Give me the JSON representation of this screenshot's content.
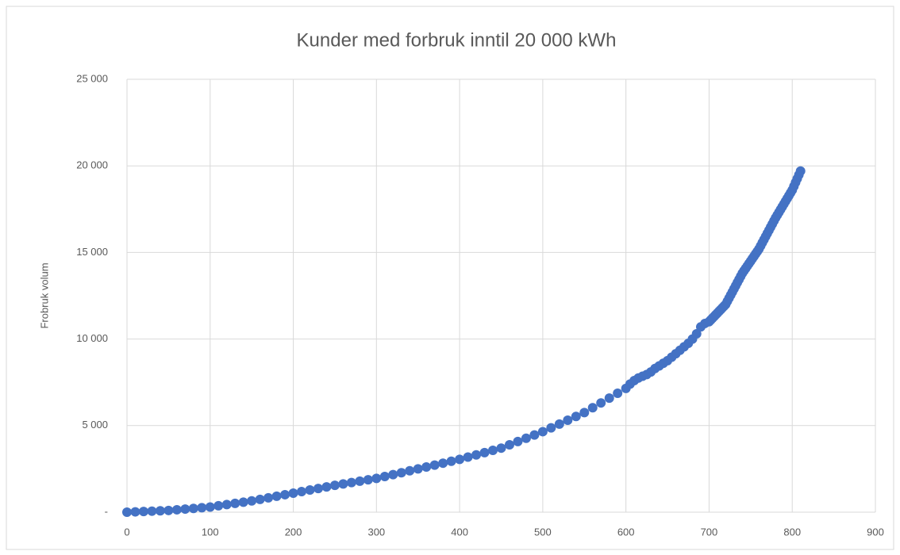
{
  "chart_data": {
    "type": "scatter",
    "title": "Kunder med forbruk inntil 20 000 kWh",
    "ylabel": "Frobruk volum",
    "color": "#4472c4",
    "grid": true,
    "xlim": [
      0,
      900
    ],
    "xticks": [
      0,
      100,
      200,
      300,
      400,
      500,
      600,
      700,
      800,
      900
    ],
    "ylim": [
      0,
      25000
    ],
    "yticks": [
      {
        "value": 0,
        "label": "-"
      },
      {
        "value": 5000,
        "label": "5 000"
      },
      {
        "value": 10000,
        "label": "10 000"
      },
      {
        "value": 15000,
        "label": "15 000"
      },
      {
        "value": 20000,
        "label": "20 000"
      },
      {
        "value": 25000,
        "label": "25 000"
      }
    ],
    "x": [
      0,
      10,
      20,
      30,
      40,
      50,
      60,
      70,
      80,
      90,
      100,
      110,
      120,
      130,
      140,
      150,
      160,
      170,
      180,
      190,
      200,
      210,
      220,
      230,
      240,
      250,
      260,
      270,
      280,
      290,
      300,
      310,
      320,
      330,
      340,
      350,
      360,
      370,
      380,
      390,
      400,
      410,
      420,
      430,
      440,
      450,
      460,
      470,
      480,
      490,
      500,
      510,
      520,
      530,
      540,
      550,
      560,
      570,
      580,
      590,
      600,
      605,
      610,
      615,
      620,
      625,
      630,
      635,
      640,
      645,
      650,
      655,
      660,
      665,
      670,
      675,
      680,
      685,
      690,
      695,
      700,
      702,
      704,
      706,
      708,
      710,
      712,
      714,
      716,
      718,
      720,
      722,
      724,
      726,
      728,
      730,
      732,
      734,
      736,
      738,
      740,
      742,
      744,
      746,
      748,
      750,
      752,
      754,
      756,
      758,
      760,
      762,
      764,
      766,
      768,
      770,
      772,
      774,
      776,
      778,
      780,
      782,
      784,
      786,
      788,
      790,
      792,
      794,
      796,
      798,
      800,
      802,
      804,
      806,
      808,
      810
    ],
    "values": [
      0,
      20,
      40,
      60,
      80,
      100,
      140,
      180,
      220,
      260,
      300,
      370,
      440,
      510,
      580,
      650,
      740,
      830,
      920,
      1010,
      1100,
      1190,
      1280,
      1370,
      1460,
      1550,
      1630,
      1710,
      1790,
      1870,
      1950,
      2060,
      2170,
      2280,
      2390,
      2500,
      2610,
      2720,
      2830,
      2940,
      3050,
      3180,
      3310,
      3440,
      3570,
      3700,
      3890,
      4080,
      4270,
      4460,
      4650,
      4870,
      5090,
      5310,
      5530,
      5750,
      6030,
      6310,
      6590,
      6870,
      7150,
      7400,
      7600,
      7750,
      7850,
      7950,
      8100,
      8300,
      8450,
      8600,
      8750,
      8950,
      9150,
      9350,
      9550,
      9750,
      10000,
      10300,
      10700,
      10900,
      11000,
      11100,
      11200,
      11300,
      11400,
      11500,
      11600,
      11700,
      11800,
      11900,
      12000,
      12180,
      12360,
      12540,
      12720,
      12900,
      13080,
      13260,
      13440,
      13620,
      13800,
      13940,
      14080,
      14220,
      14360,
      14500,
      14640,
      14780,
      14920,
      15060,
      15200,
      15380,
      15560,
      15740,
      15920,
      16100,
      16280,
      16460,
      16640,
      16820,
      17000,
      17160,
      17320,
      17480,
      17640,
      17800,
      17960,
      18120,
      18280,
      18440,
      18600,
      18820,
      19040,
      19260,
      19480,
      19700
    ]
  }
}
